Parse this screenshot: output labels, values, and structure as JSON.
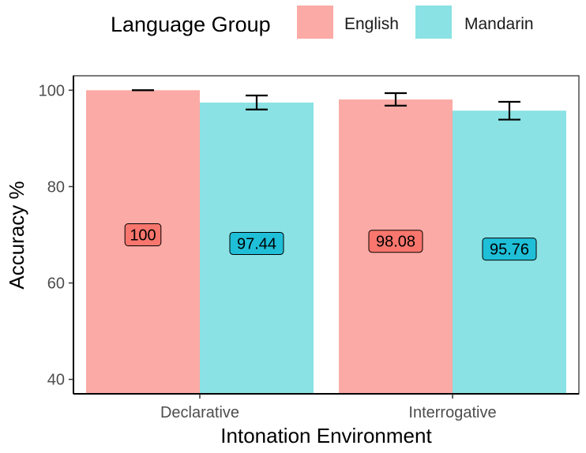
{
  "chart_data": {
    "type": "bar",
    "title": "",
    "xlabel": "Intonation Environment",
    "ylabel": "Accuracy %",
    "ylim": [
      37,
      103
    ],
    "y_ticks": [
      40,
      60,
      80,
      100
    ],
    "categories": [
      "Declarative",
      "Interrogative"
    ],
    "legend": {
      "title": "Language Group",
      "placement": "top"
    },
    "grid": false,
    "series": [
      {
        "name": "English",
        "color": "#F8766D",
        "values": [
          100,
          98.08
        ],
        "labels": [
          "100",
          "98.08"
        ],
        "error_low": [
          100,
          96.8
        ],
        "error_high": [
          100,
          99.4
        ]
      },
      {
        "name": "Mandarin",
        "color": "#00BFC4",
        "values": [
          97.44,
          95.76
        ],
        "labels": [
          "97.44",
          "95.76"
        ],
        "error_low": [
          96.0,
          93.9
        ],
        "error_high": [
          98.9,
          97.6
        ]
      }
    ]
  }
}
